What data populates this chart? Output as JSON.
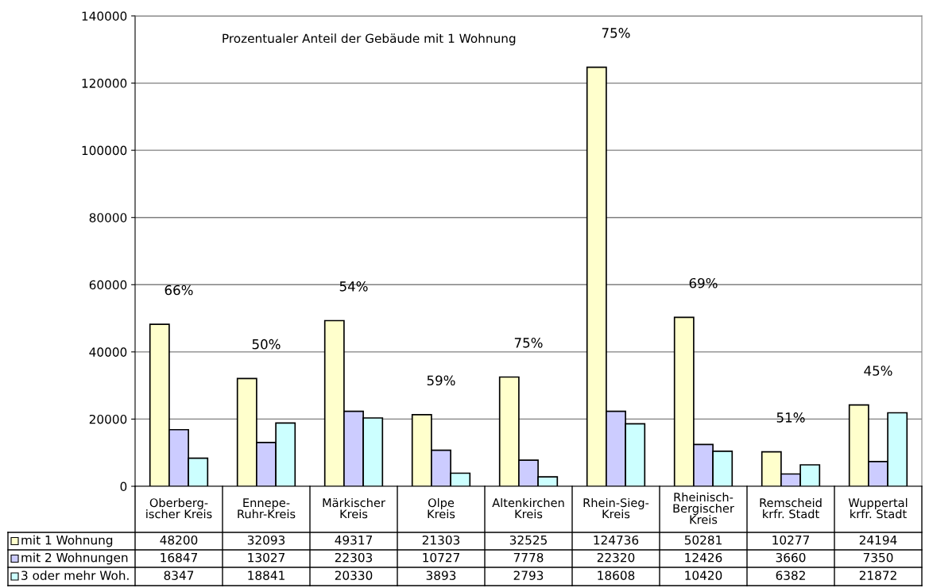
{
  "chart_data": {
    "type": "bar",
    "categories": [
      "Oberberg-\nischer Kreis",
      "Ennepe-\nRuhr-Kreis",
      "Märkischer\nKreis",
      "Olpe\nKreis",
      "Altenkirchen\nKreis",
      "Rhein-Sieg-\nKreis",
      "Rheinisch-\nBergischer\nKreis",
      "Remscheid\nkrfr. Stadt",
      "Wuppertal\nkrfr. Stadt"
    ],
    "series": [
      {
        "name": "mit 1 Wohnung",
        "color": "#ffffcc",
        "values": [
          48200,
          32093,
          49317,
          21303,
          32525,
          124736,
          50281,
          10277,
          24194
        ]
      },
      {
        "name": "mit 2 Wohnungen",
        "color": "#ccccff",
        "values": [
          16847,
          13027,
          22303,
          10727,
          7778,
          22320,
          12426,
          3660,
          7350
        ]
      },
      {
        "name": "3 oder mehr Woh.",
        "color": "#ccffff",
        "values": [
          8347,
          18841,
          20330,
          3893,
          2793,
          18608,
          10420,
          6382,
          21872
        ]
      }
    ],
    "ylim": [
      0,
      140000
    ],
    "yticks": [
      0,
      20000,
      40000,
      60000,
      80000,
      100000,
      120000,
      140000
    ],
    "grid": "y",
    "legend": "bottom",
    "data_labels": true,
    "annotations": [
      "Prozentualer Anteil der Gebäude mit 1 Wohnung",
      "66%",
      "50%",
      "54%",
      "59%",
      "75%",
      "75%",
      "69%",
      "51%",
      "45%"
    ]
  }
}
